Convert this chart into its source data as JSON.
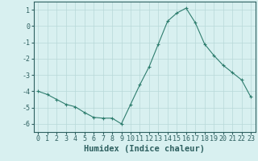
{
  "x": [
    0,
    1,
    2,
    3,
    4,
    5,
    6,
    7,
    8,
    9,
    10,
    11,
    12,
    13,
    14,
    15,
    16,
    17,
    18,
    19,
    20,
    21,
    22,
    23
  ],
  "y": [
    -4.0,
    -4.2,
    -4.5,
    -4.8,
    -4.95,
    -5.3,
    -5.6,
    -5.65,
    -5.65,
    -6.0,
    -4.8,
    -3.6,
    -2.5,
    -1.1,
    0.3,
    0.8,
    1.1,
    0.2,
    -1.1,
    -1.8,
    -2.4,
    -2.85,
    -3.3,
    -4.35
  ],
  "line_color": "#2e7d6e",
  "marker": "+",
  "marker_size": 3,
  "bg_color": "#d8f0f0",
  "grid_color": "#b8d8d8",
  "axis_color": "#2e6060",
  "xlabel": "Humidex (Indice chaleur)",
  "xlim": [
    -0.5,
    23.5
  ],
  "ylim": [
    -6.5,
    1.5
  ],
  "yticks": [
    1,
    0,
    -1,
    -2,
    -3,
    -4,
    -5,
    -6
  ],
  "xticks": [
    0,
    1,
    2,
    3,
    4,
    5,
    6,
    7,
    8,
    9,
    10,
    11,
    12,
    13,
    14,
    15,
    16,
    17,
    18,
    19,
    20,
    21,
    22,
    23
  ],
  "tick_fontsize": 6,
  "label_fontsize": 7.5
}
